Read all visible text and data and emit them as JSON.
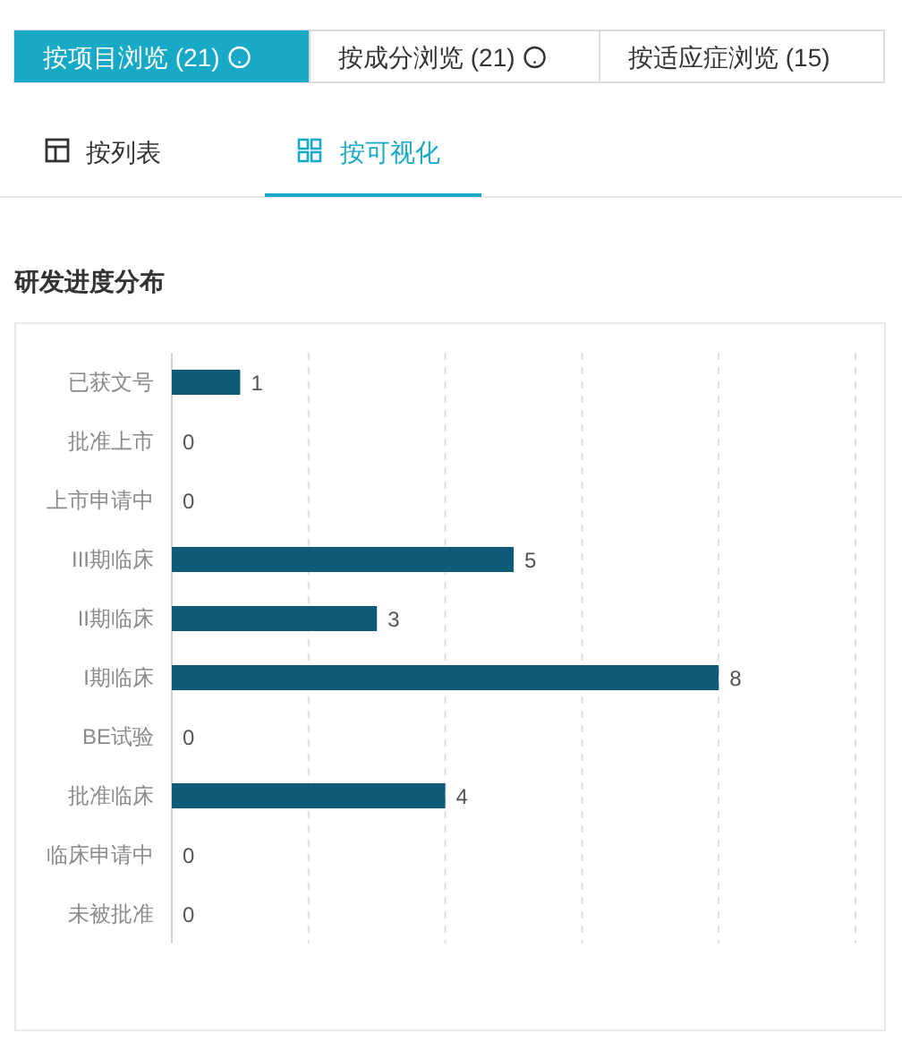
{
  "chart_data": {
    "type": "bar",
    "orientation": "horizontal",
    "title": "研发进度分布",
    "annotations": [
      "按项目浏览 (21)",
      "按成分浏览 (21)",
      "按适应症浏览 (15)",
      "按列表",
      "按可视化"
    ],
    "categories": [
      "已获文号",
      "批准上市",
      "上市申请中",
      "III期临床",
      "II期临床",
      "I期临床",
      "BE试验",
      "批准临床",
      "临床申请中",
      "未被批准"
    ],
    "values": [
      1,
      0,
      0,
      5,
      3,
      8,
      0,
      4,
      0,
      0
    ],
    "color": "#0f5a79",
    "data_labels": true,
    "xlim": [
      0,
      10
    ],
    "xticks": [
      {
        "value": 0,
        "label": null
      },
      {
        "value": 2,
        "label": null
      },
      {
        "value": 4,
        "label": null
      },
      {
        "value": 6,
        "label": null
      },
      {
        "value": 8,
        "label": null
      },
      {
        "value": 10,
        "label": null
      }
    ],
    "tick_labels": "y",
    "grid": "x"
  }
}
